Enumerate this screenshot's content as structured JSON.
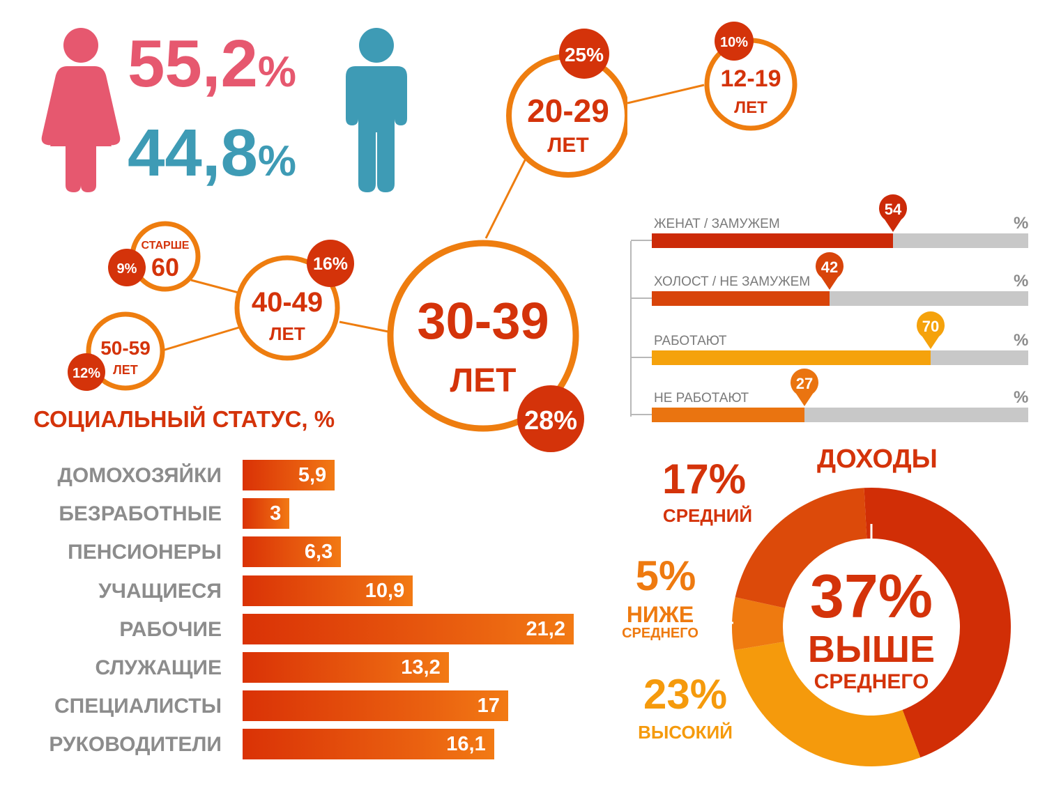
{
  "gender": {
    "female": {
      "value": "55,2",
      "unit": "%",
      "color": "#e6586f"
    },
    "male": {
      "value": "44,8",
      "unit": "%",
      "color": "#3e9bb5"
    }
  },
  "age_groups": {
    "g30_39": {
      "range": "30-39",
      "unit": "ЛЕТ",
      "share": "28%"
    },
    "g20_29": {
      "range": "20-29",
      "unit": "ЛЕТ",
      "share": "25%"
    },
    "g12_19": {
      "range": "12-19",
      "unit": "ЛЕТ",
      "share": "10%"
    },
    "g40_49": {
      "range": "40-49",
      "unit": "ЛЕТ",
      "share": "16%"
    },
    "g50_59": {
      "range": "50-59",
      "unit": "ЛЕТ",
      "share": "12%"
    },
    "g60plus": {
      "prefix": "СТАРШЕ",
      "range": "60",
      "share": "9%"
    }
  },
  "marital": [
    {
      "label": "ЖЕНАТ / ЗАМУЖЕМ",
      "value": 54,
      "unit": "%",
      "color": "#cc2a08"
    },
    {
      "label": "ХОЛОСТ / НЕ ЗАМУЖЕМ",
      "value": 42,
      "unit": "%",
      "color": "#d8440a"
    },
    {
      "label": "РАБОТАЮТ",
      "value": 70,
      "unit": "%",
      "color": "#f5a20c"
    },
    {
      "label": "НЕ РАБОТАЮТ",
      "value": 27,
      "unit": "%",
      "color": "#ea7410"
    }
  ],
  "income": {
    "title": "ДОХОДЫ",
    "segments": [
      {
        "pct": "37%",
        "line1": "ВЫШЕ",
        "line2": "СРЕДНЕГО",
        "value": 37,
        "color": "#d12e06"
      },
      {
        "pct": "23%",
        "line1": "ВЫСОКИЙ",
        "line2": "",
        "value": 23,
        "color": "#f59a0c"
      },
      {
        "pct": "5%",
        "line1": "НИЖЕ",
        "line2": "СРЕДНЕГО",
        "value": 5,
        "color": "#ee7a10"
      },
      {
        "pct": "17%",
        "line1": "СРЕДНИЙ",
        "line2": "",
        "value": 17,
        "color": "#dc4a0a"
      }
    ]
  },
  "chart_data": {
    "type": "bar",
    "title": "СОЦИАЛЬНЫЙ СТАТУС, %",
    "categories": [
      "ДОМОХОЗЯЙКИ",
      "БЕЗРАБОТНЫЕ",
      "ПЕНСИОНЕРЫ",
      "УЧАЩИЕСЯ",
      "РАБОЧИЕ",
      "СЛУЖАЩИЕ",
      "СПЕЦИАЛИСТЫ",
      "РУКОВОДИТЕЛИ"
    ],
    "values": [
      5.9,
      3,
      6.3,
      10.9,
      21.2,
      13.2,
      17,
      16.1
    ],
    "value_labels": [
      "5,9",
      "3",
      "6,3",
      "10,9",
      "21,2",
      "13,2",
      "17",
      "16,1"
    ],
    "orientation": "horizontal",
    "grid": false
  }
}
